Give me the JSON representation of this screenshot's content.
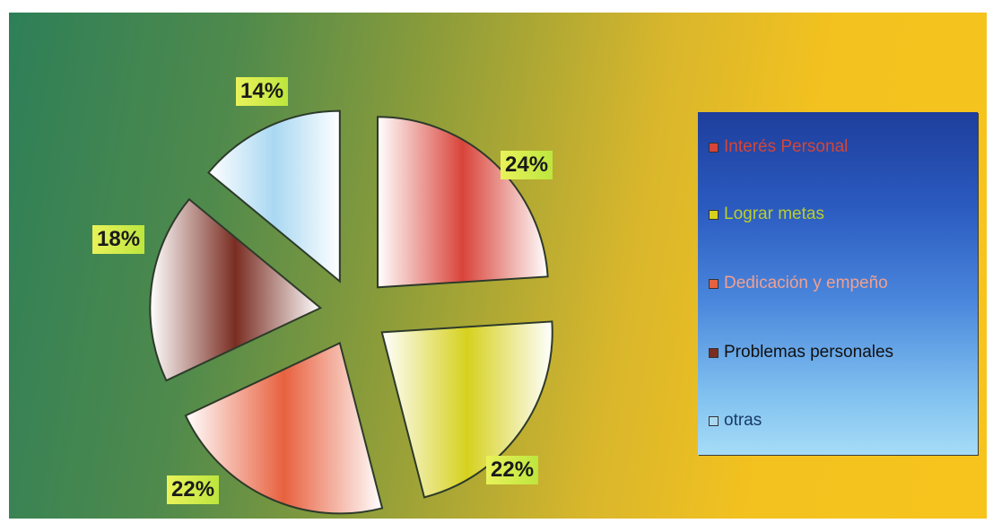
{
  "chart_data": {
    "type": "pie",
    "exploded": true,
    "slices": [
      {
        "label": "Interés Personal",
        "value": 24,
        "value_label": "24%",
        "color": "#d9443a"
      },
      {
        "label": "Lograr metas",
        "value": 22,
        "value_label": "22%",
        "color": "#d6d11e"
      },
      {
        "label": "Dedicación y empeño",
        "value": 22,
        "value_label": "22%",
        "color": "#e8613f"
      },
      {
        "label": "Problemas personales",
        "value": 18,
        "value_label": "18%",
        "color": "#7a2d22"
      },
      {
        "label": "otras",
        "value": 14,
        "value_label": "14%",
        "color": "#a9d8f2"
      }
    ],
    "legend_position": "right"
  },
  "legend": {
    "items": [
      {
        "label": "Interés Personal",
        "text_color": "#d64535"
      },
      {
        "label": "Lograr metas",
        "text_color": "#b8ce2c"
      },
      {
        "label": "Dedicación y empeño",
        "text_color": "#f0a090"
      },
      {
        "label": "Problemas personales",
        "text_color": "#111111"
      },
      {
        "label": "otras",
        "text_color": "#1a3a66"
      }
    ]
  }
}
